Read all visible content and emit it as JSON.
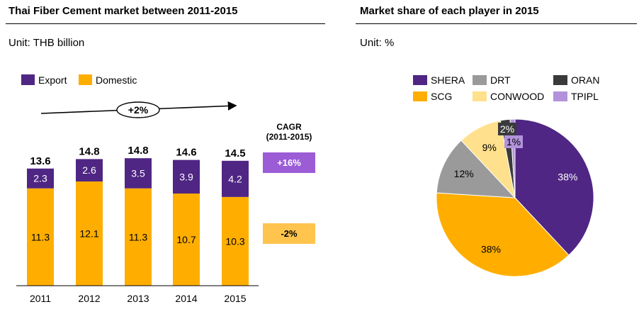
{
  "left": {
    "title": "Thai Fiber Cement market between 2011-2015",
    "unit": "Unit: THB billion"
  },
  "right": {
    "title": "Market share of each player in 2015",
    "unit": "Unit: %"
  },
  "chart_data": [
    {
      "type": "bar",
      "stacked": true,
      "categories": [
        "2011",
        "2012",
        "2013",
        "2014",
        "2015"
      ],
      "series": [
        {
          "name": "Domestic",
          "values": [
            11.3,
            12.1,
            11.3,
            10.7,
            10.3
          ],
          "value_labels": [
            "11.3",
            "12.1",
            "11.3",
            "10.7",
            "10.3"
          ],
          "color": "#FFAE00"
        },
        {
          "name": "Export",
          "values": [
            2.3,
            2.6,
            3.5,
            3.9,
            4.2
          ],
          "value_labels": [
            "2.3",
            "2.6",
            "3.5",
            "3.9",
            "4.2"
          ],
          "color": "#4F2683"
        }
      ],
      "totals": [
        "13.6",
        "14.8",
        "14.8",
        "14.6",
        "14.5"
      ],
      "legend": {
        "items": [
          "Export",
          "Domestic"
        ],
        "position": "top-left"
      },
      "annotation": "+2%",
      "cagr": {
        "header_line1": "CAGR",
        "header_line2": "(2011-2015)",
        "export": "+16%",
        "domestic": "-2%",
        "export_color": "#9B5CD6",
        "domestic_color": "#FFC44D"
      }
    },
    {
      "type": "pie",
      "labels": [
        "SHERA",
        "SCG",
        "DRT",
        "CONWOOD",
        "ORAN",
        "TPIPL"
      ],
      "values": [
        38,
        38,
        12,
        9,
        2,
        1
      ],
      "value_labels": [
        "38%",
        "38%",
        "12%",
        "9%",
        "2%",
        "1%"
      ],
      "colors": [
        "#4F2683",
        "#FFAE00",
        "#9A9A9A",
        "#FFE08C",
        "#3A3A3A",
        "#B392DC"
      ],
      "legend": {
        "position": "top"
      }
    }
  ]
}
